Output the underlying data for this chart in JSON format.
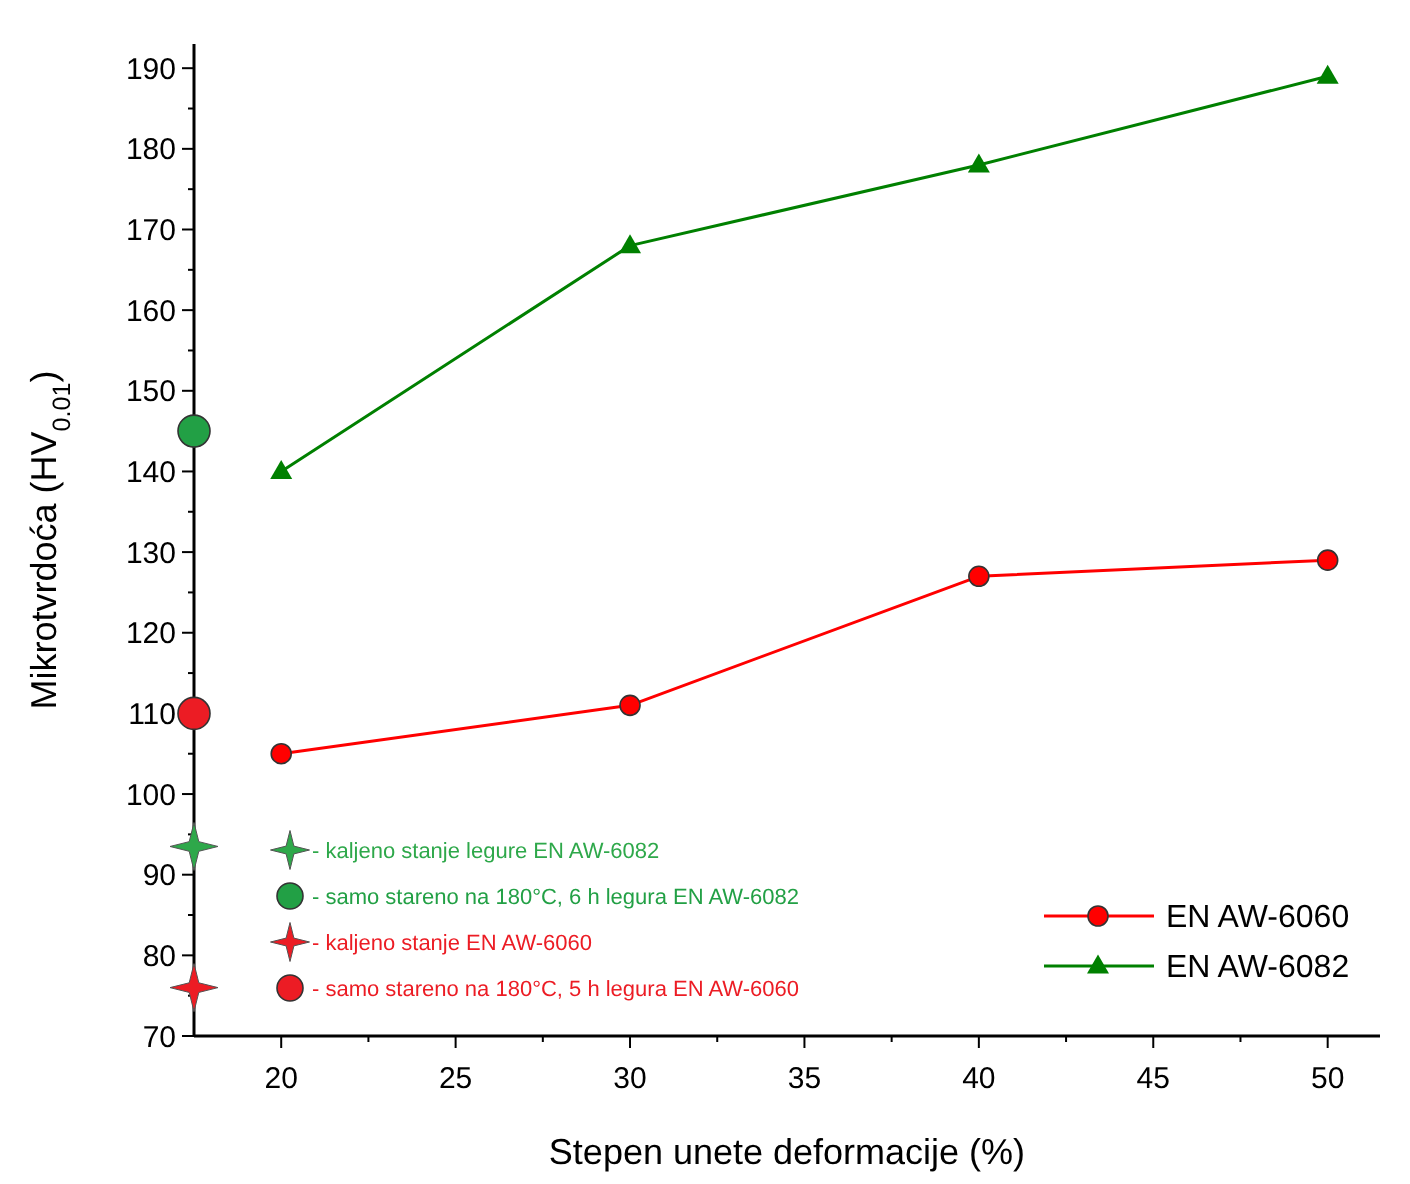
{
  "chart_data": {
    "type": "line",
    "xlabel": "Stepen unete deformacije (%)",
    "ylabel": "Mikrotvrdoća (HV$_{0.01}$)",
    "xlim": [
      17.5,
      51.5
    ],
    "xticks": [
      20,
      25,
      30,
      35,
      40,
      45,
      50
    ],
    "ylim": [
      70,
      193
    ],
    "yticks": [
      70,
      80,
      90,
      100,
      110,
      120,
      130,
      140,
      150,
      160,
      170,
      180,
      190
    ],
    "grid": false,
    "legend": "bottom right",
    "series": [
      {
        "name": "EN AW-6060",
        "color": "#ff0000",
        "marker": "circle",
        "x": [
          20,
          30,
          40,
          50
        ],
        "values": [
          105,
          111,
          127,
          129
        ]
      },
      {
        "name": "EN AW-6082",
        "color": "#008000",
        "marker": "triangle",
        "x": [
          20,
          30,
          40,
          50
        ],
        "values": [
          140,
          168,
          178,
          189
        ]
      },
      {
        "name": "- kaljeno stanje legure EN AW-6082",
        "type": "scatter",
        "color": "#2ea84a",
        "marker": "star",
        "x": [
          17.5
        ],
        "values": [
          93.5
        ]
      },
      {
        "name": "- samo stareno na 180°C, 6 h legura EN AW-6082",
        "type": "scatter",
        "color": "#22a045",
        "marker": "circle",
        "x": [
          17.5
        ],
        "values": [
          145
        ]
      },
      {
        "name": "- kaljeno stanje EN AW-6060",
        "type": "scatter",
        "color": "#ec1c24",
        "marker": "star",
        "x": [
          17.5
        ],
        "values": [
          76
        ]
      },
      {
        "name": "- samo stareno na 180°C, 5 h legura EN AW-6060",
        "type": "scatter",
        "color": "#ec1c24",
        "marker": "circle",
        "x": [
          17.5
        ],
        "values": [
          110
        ]
      }
    ]
  }
}
